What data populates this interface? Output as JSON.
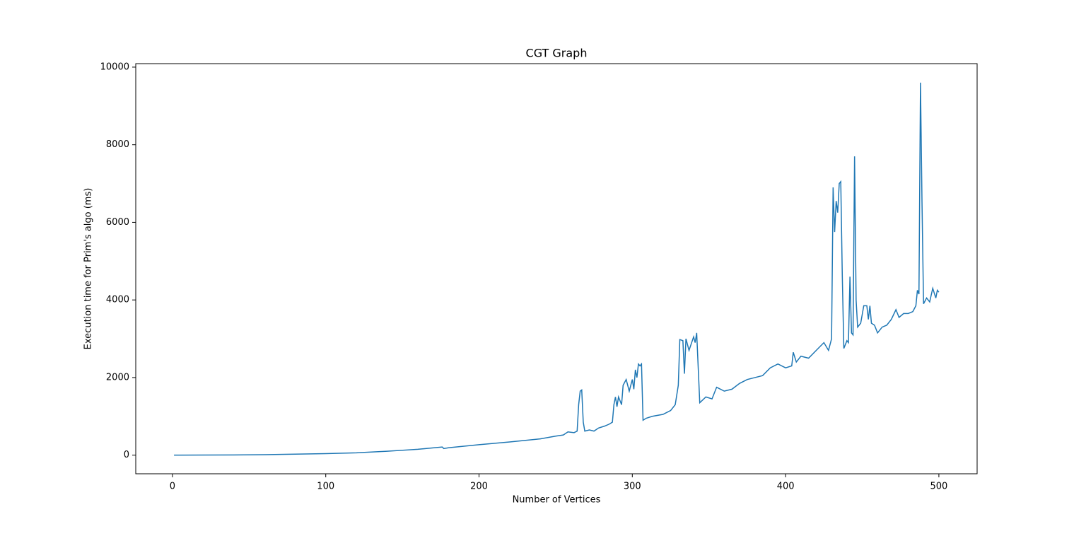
{
  "chart_data": {
    "type": "line",
    "title": "CGT Graph",
    "x_label": "Number of Vertices",
    "y_label": "Execution time for Prim's algo (ms)",
    "x": [
      1,
      20,
      40,
      60,
      80,
      100,
      120,
      140,
      160,
      176,
      177,
      180,
      200,
      220,
      240,
      250,
      255,
      258,
      262,
      264,
      265,
      266,
      267,
      268,
      269,
      272,
      275,
      278,
      282,
      285,
      287,
      288,
      289,
      290,
      291,
      293,
      294,
      296,
      298,
      300,
      301,
      302,
      303,
      304,
      305,
      306,
      307,
      309,
      313,
      320,
      325,
      328,
      330,
      331,
      333,
      334,
      335,
      337,
      340,
      341,
      342,
      344,
      348,
      352,
      355,
      360,
      365,
      370,
      375,
      380,
      385,
      390,
      395,
      400,
      404,
      405,
      407,
      410,
      415,
      420,
      425,
      428,
      430,
      431,
      432,
      433,
      434,
      435,
      436,
      437,
      438,
      440,
      441,
      442,
      443,
      444,
      445,
      446,
      447,
      449,
      451,
      453,
      454,
      455,
      456,
      458,
      460,
      463,
      466,
      469,
      472,
      474,
      477,
      480,
      483,
      485,
      486,
      487,
      488,
      489,
      490,
      492,
      494,
      496,
      498,
      499,
      500
    ],
    "series": [
      {
        "name": "Execution time",
        "color": "#1f77b4",
        "values": [
          1,
          2,
          5,
          12,
          25,
          40,
          60,
          100,
          150,
          210,
          170,
          190,
          270,
          340,
          420,
          490,
          520,
          600,
          580,
          620,
          1300,
          1650,
          1680,
          850,
          620,
          650,
          620,
          700,
          750,
          800,
          850,
          1300,
          1500,
          1250,
          1500,
          1300,
          1800,
          1950,
          1650,
          1950,
          1700,
          2200,
          2000,
          2350,
          2300,
          2350,
          900,
          950,
          1000,
          1050,
          1150,
          1300,
          1800,
          2980,
          2950,
          2100,
          3000,
          2700,
          3050,
          2900,
          3150,
          1350,
          1500,
          1450,
          1750,
          1650,
          1700,
          1850,
          1950,
          2000,
          2050,
          2250,
          2350,
          2250,
          2300,
          2650,
          2400,
          2550,
          2500,
          2700,
          2900,
          2700,
          3000,
          6900,
          5750,
          6550,
          6250,
          7000,
          7050,
          4600,
          2750,
          2950,
          2900,
          4600,
          3150,
          3100,
          7700,
          4000,
          3300,
          3400,
          3850,
          3850,
          3500,
          3850,
          3400,
          3350,
          3150,
          3300,
          3350,
          3500,
          3750,
          3550,
          3650,
          3650,
          3700,
          3850,
          4250,
          4150,
          9600,
          6500,
          3900,
          4050,
          3950,
          4300,
          4050,
          4250,
          4200
        ]
      }
    ],
    "xlim": [
      -23.95,
      524.95
    ],
    "ylim": [
      -480,
      10090
    ],
    "xticks": [
      0,
      100,
      200,
      300,
      400,
      500
    ],
    "yticks": [
      0,
      2000,
      4000,
      6000,
      8000,
      10000
    ]
  }
}
